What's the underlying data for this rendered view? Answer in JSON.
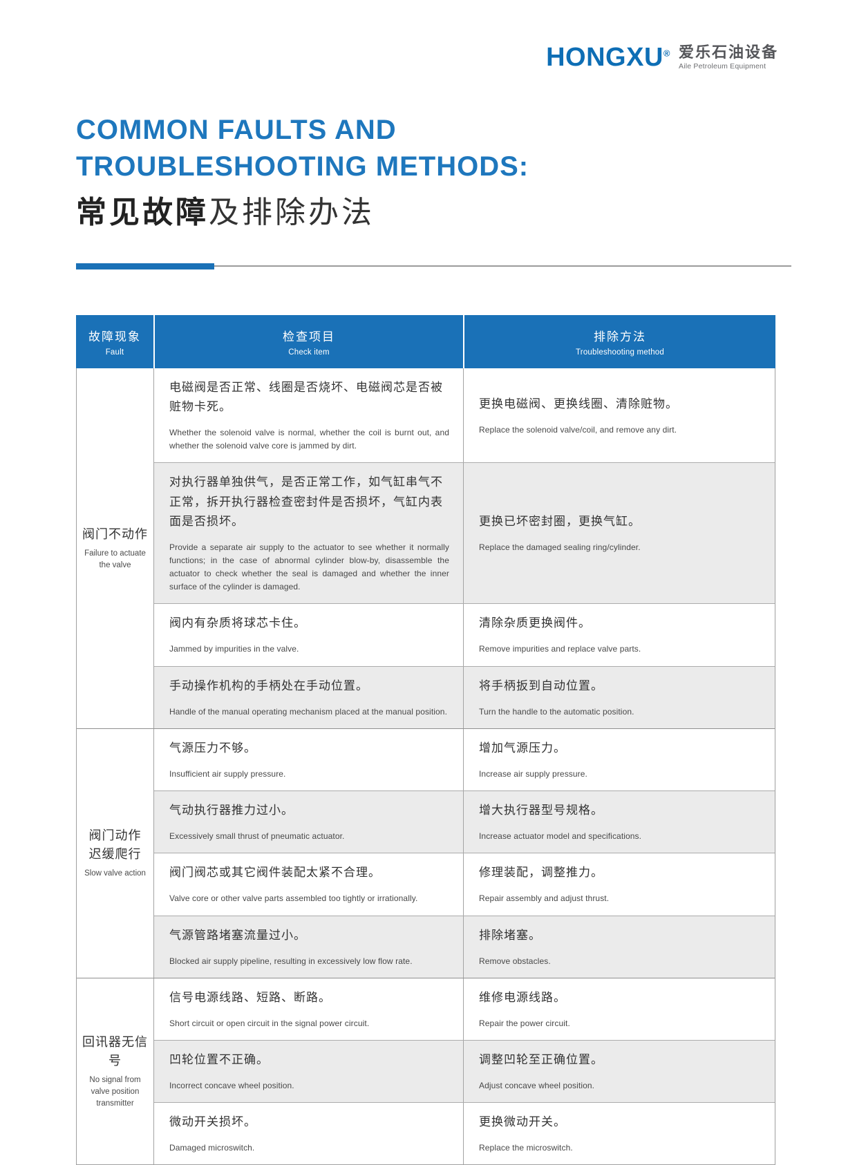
{
  "logo": {
    "brand": "HONGXU",
    "reg": "®",
    "cn": "爱乐石油设备",
    "en": "Aile Petroleum Equipment"
  },
  "title": {
    "en": "COMMON FAULTS AND\nTROUBLESHOOTING METHODS:",
    "cn_bold": "常见故障",
    "cn_rest": "及排除办法"
  },
  "colors": {
    "brand_blue": "#0e6eb5",
    "title_blue": "#1e77bd",
    "table_header_blue": "#1a71b7",
    "row_alt_gray": "#ebebeb"
  },
  "table": {
    "headers": [
      {
        "cn": "故障现象",
        "en": "Fault"
      },
      {
        "cn": "检查项目",
        "en": "Check item"
      },
      {
        "cn": "排除方法",
        "en": "Troubleshooting method"
      }
    ],
    "groups": [
      {
        "fault_cn": "阀门不动作",
        "fault_en": "Failure to actuate the valve",
        "rows": [
          {
            "check_cn": "电磁阀是否正常、线圈是否烧坏、电磁阀芯是否被赃物卡死。",
            "check_en": "Whether the solenoid valve is normal, whether the coil is burnt out, and whether the solenoid valve core is jammed by dirt.",
            "fix_cn": "更换电磁阀、更换线圈、清除赃物。",
            "fix_en": "Replace the solenoid valve/coil, and remove any dirt."
          },
          {
            "check_cn": "对执行器单独供气，是否正常工作，如气缸串气不正常，拆开执行器检查密封件是否损坏，气缸内表面是否损坏。",
            "check_en": "Provide a separate air supply to the actuator to see whether it normally functions; in the case of abnormal cylinder blow-by, disassemble the actuator to check whether the seal is damaged and whether the inner surface of the cylinder is damaged.",
            "fix_cn": "更换已坏密封圈，更换气缸。",
            "fix_en": "Replace the damaged sealing ring/cylinder."
          },
          {
            "check_cn": "阀内有杂质将球芯卡住。",
            "check_en": "Jammed by impurities in the valve.",
            "fix_cn": "清除杂质更换阀件。",
            "fix_en": "Remove impurities and replace valve parts."
          },
          {
            "check_cn": "手动操作机构的手柄处在手动位置。",
            "check_en": "Handle of the manual operating mechanism placed at the manual position.",
            "fix_cn": "将手柄扳到自动位置。",
            "fix_en": "Turn the handle to the automatic position."
          }
        ]
      },
      {
        "fault_cn": "阀门动作\n迟缓爬行",
        "fault_en": "Slow valve action",
        "rows": [
          {
            "check_cn": "气源压力不够。",
            "check_en": "Insufficient air supply pressure.",
            "fix_cn": "增加气源压力。",
            "fix_en": "Increase air supply pressure."
          },
          {
            "check_cn": "气动执行器推力过小。",
            "check_en": "Excessively small thrust of pneumatic actuator.",
            "fix_cn": "增大执行器型号规格。",
            "fix_en": "Increase actuator model and specifications."
          },
          {
            "check_cn": "阀门阀芯或其它阀件装配太紧不合理。",
            "check_en": "Valve core or other valve parts assembled too tightly or irrationally.",
            "fix_cn": "修理装配，调整推力。",
            "fix_en": "Repair assembly and adjust thrust."
          },
          {
            "check_cn": "气源管路堵塞流量过小。",
            "check_en": "Blocked air supply pipeline, resulting in excessively low flow rate.",
            "fix_cn": "排除堵塞。",
            "fix_en": "Remove obstacles."
          }
        ]
      },
      {
        "fault_cn": "回讯器无信号",
        "fault_en": "No signal from valve position transmitter",
        "rows": [
          {
            "check_cn": "信号电源线路、短路、断路。",
            "check_en": "Short circuit or open circuit in the signal power circuit.",
            "fix_cn": "维修电源线路。",
            "fix_en": "Repair the power circuit."
          },
          {
            "check_cn": "凹轮位置不正确。",
            "check_en": "Incorrect concave wheel position.",
            "fix_cn": "调整凹轮至正确位置。",
            "fix_en": "Adjust concave wheel position."
          },
          {
            "check_cn": "微动开关损坏。",
            "check_en": "Damaged microswitch.",
            "fix_cn": "更换微动开关。",
            "fix_en": "Replace the microswitch."
          }
        ]
      }
    ]
  }
}
